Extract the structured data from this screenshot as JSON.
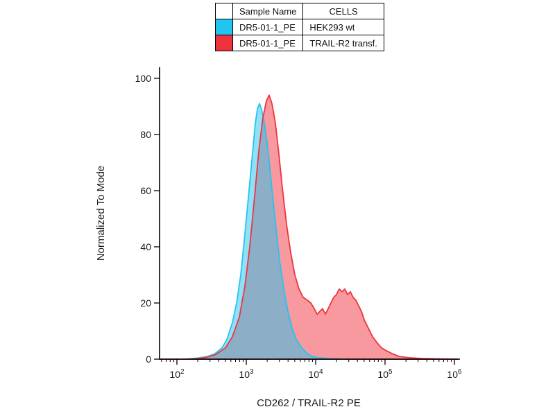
{
  "legend": {
    "columns": [
      "Sample Name",
      "CELLS"
    ]
  },
  "chart_data": {
    "type": "area",
    "subtype": "flow-cytometry-histogram-overlay",
    "title": "",
    "xlabel": "CD262 / TRAIL-R2 PE",
    "ylabel": "Normalized To Mode",
    "x_scale": "log10",
    "xlim_log": [
      1.75,
      6.05
    ],
    "x_tick_exponents": [
      2,
      3,
      4,
      5,
      6
    ],
    "ylim": [
      0,
      100
    ],
    "y_ticks": [
      0,
      20,
      40,
      60,
      80,
      100
    ],
    "grid": false,
    "legend_position": "top-center",
    "series": [
      {
        "name": "DR5-01-1_PE",
        "cells": "HEK293 wt",
        "color": "#22C4F0",
        "fill_opacity": 0.5,
        "peak": {
          "x_log": 3.19,
          "y": 91
        },
        "points": [
          [
            1.75,
            0
          ],
          [
            2.1,
            0
          ],
          [
            2.3,
            0.4
          ],
          [
            2.45,
            1
          ],
          [
            2.55,
            2
          ],
          [
            2.65,
            4
          ],
          [
            2.72,
            7
          ],
          [
            2.8,
            13
          ],
          [
            2.86,
            20
          ],
          [
            2.92,
            30
          ],
          [
            2.97,
            42
          ],
          [
            3.02,
            55
          ],
          [
            3.07,
            68
          ],
          [
            3.1,
            76
          ],
          [
            3.13,
            84
          ],
          [
            3.16,
            89
          ],
          [
            3.19,
            91
          ],
          [
            3.22,
            89
          ],
          [
            3.26,
            84
          ],
          [
            3.3,
            77
          ],
          [
            3.34,
            68
          ],
          [
            3.38,
            58
          ],
          [
            3.43,
            46
          ],
          [
            3.48,
            35
          ],
          [
            3.54,
            25
          ],
          [
            3.6,
            17
          ],
          [
            3.66,
            11
          ],
          [
            3.72,
            7
          ],
          [
            3.8,
            4
          ],
          [
            3.88,
            2
          ],
          [
            3.95,
            1
          ],
          [
            4.05,
            0.5
          ],
          [
            4.2,
            0.2
          ],
          [
            4.5,
            0
          ],
          [
            6.05,
            0
          ]
        ]
      },
      {
        "name": "DR5-01-1_PE",
        "cells": "TRAIL-R2 transf.",
        "color": "#EF333D",
        "fill_opacity": 0.5,
        "peak": {
          "x_log": 3.33,
          "y": 94
        },
        "second_peak": {
          "x_log": 4.4,
          "y": 25
        },
        "points": [
          [
            1.75,
            0
          ],
          [
            2.2,
            0
          ],
          [
            2.4,
            0.5
          ],
          [
            2.55,
            1.5
          ],
          [
            2.7,
            4
          ],
          [
            2.8,
            8
          ],
          [
            2.9,
            15
          ],
          [
            2.98,
            26
          ],
          [
            3.05,
            40
          ],
          [
            3.12,
            58
          ],
          [
            3.18,
            74
          ],
          [
            3.24,
            86
          ],
          [
            3.29,
            92
          ],
          [
            3.33,
            94
          ],
          [
            3.37,
            91
          ],
          [
            3.42,
            84
          ],
          [
            3.47,
            73
          ],
          [
            3.52,
            61
          ],
          [
            3.58,
            48
          ],
          [
            3.64,
            38
          ],
          [
            3.7,
            30
          ],
          [
            3.76,
            25
          ],
          [
            3.82,
            22
          ],
          [
            3.88,
            21
          ],
          [
            3.93,
            20
          ],
          [
            3.98,
            18
          ],
          [
            4.02,
            16
          ],
          [
            4.06,
            17
          ],
          [
            4.1,
            18
          ],
          [
            4.14,
            16
          ],
          [
            4.18,
            18
          ],
          [
            4.22,
            20
          ],
          [
            4.26,
            22
          ],
          [
            4.3,
            23
          ],
          [
            4.34,
            25
          ],
          [
            4.38,
            24
          ],
          [
            4.42,
            25
          ],
          [
            4.46,
            23
          ],
          [
            4.5,
            24
          ],
          [
            4.54,
            22
          ],
          [
            4.58,
            21
          ],
          [
            4.62,
            19
          ],
          [
            4.66,
            17
          ],
          [
            4.7,
            14
          ],
          [
            4.76,
            11
          ],
          [
            4.82,
            8
          ],
          [
            4.88,
            6
          ],
          [
            4.95,
            4
          ],
          [
            5.02,
            3
          ],
          [
            5.1,
            2
          ],
          [
            5.2,
            1
          ],
          [
            5.35,
            0.5
          ],
          [
            5.55,
            0.2
          ],
          [
            6.05,
            0
          ]
        ]
      }
    ]
  }
}
